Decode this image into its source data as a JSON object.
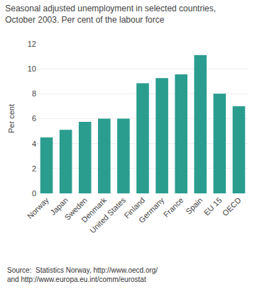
{
  "chart_data": {
    "type": "bar",
    "title": "Seasonal adjusted unemployment in selected countries,\nOctober 2003. Per cent of the labour force",
    "ylabel": "Per cent",
    "categories": [
      "Norway",
      "Japan",
      "Sweden",
      "Denmark",
      "United States",
      "Finland",
      "Germany",
      "France",
      "Spain",
      "EU 15",
      "OECD"
    ],
    "values": [
      4.5,
      5.1,
      5.75,
      6.0,
      6.0,
      8.85,
      9.25,
      9.55,
      11.1,
      8.0,
      7.0
    ],
    "color": "#2a9d8f",
    "ylim": [
      0,
      12
    ],
    "yticks": [
      0,
      2,
      4,
      6,
      8,
      10,
      12
    ],
    "grid": true,
    "annotations": [
      "Source:  Statistics Norway, http://www.oecd.org/\nand http://www.europa.eu.int/comm/eurostat"
    ]
  }
}
